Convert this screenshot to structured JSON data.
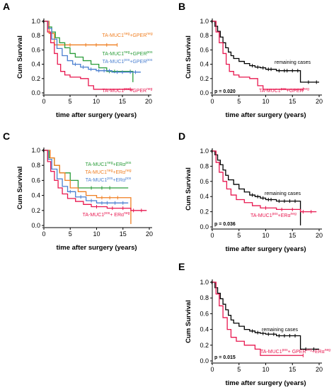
{
  "chart_data": [
    {
      "panel": "A",
      "type": "line",
      "subtype": "kaplan-meier",
      "xlabel": "time after surgery (years)",
      "ylabel": "Cum Survival",
      "xlim": [
        0,
        20
      ],
      "ylim": [
        0,
        1.0
      ],
      "xticks": [
        "0",
        "5",
        "10",
        "15",
        "20"
      ],
      "yticks": [
        "0.0",
        "0.2",
        "0.4",
        "0.6",
        "0.8",
        "1.0"
      ],
      "series": [
        {
          "name": "TA-MUC1neg+GPERneg",
          "label_main": "TA-MUC1",
          "label_sup1": "neg",
          "label_mid": "+GPER",
          "label_sup2": "neg",
          "color": "#f07f22",
          "x": [
            0,
            1.0,
            2.0,
            3.5,
            14.0
          ],
          "y": [
            1.0,
            0.83,
            0.67,
            0.67,
            0.67
          ],
          "censor_x": [
            5,
            8,
            10,
            12,
            14
          ]
        },
        {
          "name": "TA-MUC1neg+GPERpos",
          "label_main": "TA-MUC1",
          "label_sup1": "neg",
          "label_mid": "+GPER",
          "label_sup2": "pos",
          "color": "#2a9d3a",
          "x": [
            0,
            0.8,
            1.5,
            2.2,
            3.0,
            4.0,
            5.0,
            6.0,
            7.5,
            9.0,
            10.5,
            12.0,
            14.5,
            17.0
          ],
          "y": [
            1.0,
            0.92,
            0.85,
            0.77,
            0.7,
            0.63,
            0.55,
            0.5,
            0.45,
            0.4,
            0.35,
            0.3,
            0.3,
            0.15
          ],
          "censor_x": [
            12.5,
            13.5,
            16.5
          ]
        },
        {
          "name": "TA-MUC1pos+GPERpos",
          "label_main": "TA-MUC1",
          "label_sup1": "pos",
          "label_mid": "+GPER",
          "label_sup2": "pos",
          "color": "#4a7fd0",
          "x": [
            0,
            0.8,
            1.5,
            2.5,
            3.5,
            4.5,
            5.5,
            7.0,
            8.5,
            10.0,
            13.0,
            18.5
          ],
          "y": [
            1.0,
            0.9,
            0.75,
            0.62,
            0.52,
            0.45,
            0.4,
            0.36,
            0.33,
            0.31,
            0.29,
            0.29
          ],
          "censor_x": [
            6,
            7.5,
            9,
            10.5,
            11.5,
            12.5,
            14,
            15,
            16.5,
            17.5
          ]
        },
        {
          "name": "TA-MUC1pos+GPERneg",
          "label_main": "TA-MUC1",
          "label_sup1": "pos",
          "label_mid": "+GPER",
          "label_sup2": "neg",
          "color": "#e8174f",
          "x": [
            0,
            0.7,
            1.3,
            2.0,
            2.6,
            3.2,
            4.0,
            5.0,
            7.0,
            8.5,
            9.5,
            17.0
          ],
          "y": [
            1.0,
            0.85,
            0.7,
            0.55,
            0.4,
            0.3,
            0.25,
            0.22,
            0.2,
            0.1,
            0.05,
            0.05
          ],
          "censor_x": [
            16.5
          ]
        }
      ]
    },
    {
      "panel": "B",
      "type": "line",
      "subtype": "kaplan-meier",
      "xlabel": "time after surgery (years)",
      "ylabel": "Cum Survival",
      "xlim": [
        0,
        20
      ],
      "ylim": [
        0,
        1.0
      ],
      "xticks": [
        "0",
        "5",
        "10",
        "15",
        "20"
      ],
      "yticks": [
        "0.0",
        "0.2",
        "0.4",
        "0.6",
        "0.8",
        "1.0"
      ],
      "pvalue": "p = 0.020",
      "series": [
        {
          "name": "remaining cases",
          "label_main": "remaining cases",
          "label_sup1": "",
          "label_mid": "",
          "label_sup2": "",
          "color": "#000000",
          "x": [
            0,
            0.5,
            1.0,
            1.5,
            2.0,
            2.5,
            3.0,
            3.5,
            4.0,
            5.0,
            6.0,
            7.0,
            8.0,
            9.0,
            10.0,
            12.0,
            16.5,
            20.0
          ],
          "y": [
            1.0,
            0.93,
            0.86,
            0.78,
            0.7,
            0.63,
            0.57,
            0.52,
            0.48,
            0.44,
            0.41,
            0.38,
            0.36,
            0.35,
            0.33,
            0.31,
            0.15,
            0.15
          ],
          "censor_x": [
            7.5,
            8.5,
            9.5,
            10.5,
            11,
            12.5,
            13.5,
            14,
            15,
            16,
            18,
            19.5
          ]
        },
        {
          "name": "TA-MUC1pos+GPERneg",
          "label_main": "TA-MUC1",
          "label_sup1": "pos",
          "label_mid": "+GPER",
          "label_sup2": "neg",
          "color": "#e8174f",
          "x": [
            0,
            0.7,
            1.3,
            2.0,
            2.6,
            3.2,
            4.0,
            5.0,
            7.0,
            8.5,
            9.5,
            17.0
          ],
          "y": [
            1.0,
            0.85,
            0.7,
            0.55,
            0.4,
            0.3,
            0.25,
            0.22,
            0.2,
            0.1,
            0.05,
            0.05
          ],
          "censor_x": [
            17.0
          ]
        }
      ]
    },
    {
      "panel": "C",
      "type": "line",
      "subtype": "kaplan-meier",
      "xlabel": "time after surgery (years)",
      "ylabel": "Cum Survival",
      "xlim": [
        0,
        20
      ],
      "ylim": [
        0,
        1.0
      ],
      "xticks": [
        "0",
        "5",
        "10",
        "15",
        "20"
      ],
      "yticks": [
        "0.0",
        "0.2",
        "0.4",
        "0.6",
        "0.8",
        "1.0"
      ],
      "series": [
        {
          "name": "TA-MUC1neg+ERαpos",
          "label_main": "TA-MUC1",
          "label_sup1": "neg",
          "label_mid": "+ERα",
          "label_sup2": "pos",
          "color": "#2a9d3a",
          "x": [
            0,
            1.0,
            2.0,
            3.0,
            5.0,
            6.5,
            9.0,
            16.0
          ],
          "y": [
            1.0,
            0.9,
            0.8,
            0.7,
            0.6,
            0.5,
            0.5,
            0.5
          ],
          "censor_x": [
            9,
            11,
            12.5
          ]
        },
        {
          "name": "TA-MUC1neg+ERαneg",
          "label_main": "TA-MUC1",
          "label_sup1": "neg",
          "label_mid": "+ERα",
          "label_sup2": "neg",
          "color": "#f07f22",
          "x": [
            0,
            1.2,
            2.0,
            3.0,
            4.0,
            5.0,
            6.5,
            8.0,
            10.0,
            16.0,
            16.5
          ],
          "y": [
            1.0,
            0.9,
            0.8,
            0.7,
            0.6,
            0.5,
            0.45,
            0.4,
            0.37,
            0.37,
            0.02
          ],
          "censor_x": [
            11,
            12.5,
            14
          ]
        },
        {
          "name": "TA-MUC1pos+ERαpos",
          "label_main": "TA-MUC1",
          "label_sup1": "pos",
          "label_mid": "+ERα",
          "label_sup2": "pos",
          "color": "#4a7fd0",
          "x": [
            0,
            0.8,
            1.5,
            2.5,
            3.5,
            4.5,
            6.0,
            8.0,
            10.0,
            16.0
          ],
          "y": [
            1.0,
            0.88,
            0.75,
            0.62,
            0.52,
            0.45,
            0.38,
            0.33,
            0.3,
            0.3
          ],
          "censor_x": [
            5,
            7,
            9,
            11,
            12,
            13.5,
            15
          ]
        },
        {
          "name": "TA-MUC1pos+ ERαneg",
          "label_main": "TA-MUC1",
          "label_sup1": "pos",
          "label_mid": "+ ERα",
          "label_sup2": "neg",
          "color": "#e8174f",
          "x": [
            0,
            0.7,
            1.3,
            2.0,
            2.7,
            3.5,
            4.5,
            6.0,
            7.5,
            9.0,
            12.0,
            16.5,
            19.5
          ],
          "y": [
            1.0,
            0.85,
            0.72,
            0.6,
            0.5,
            0.42,
            0.36,
            0.32,
            0.28,
            0.25,
            0.23,
            0.2,
            0.2
          ],
          "censor_x": [
            10,
            13,
            15,
            17,
            18.5
          ]
        }
      ]
    },
    {
      "panel": "D",
      "type": "line",
      "subtype": "kaplan-meier",
      "xlabel": "time after surgery (years)",
      "ylabel": "Cum Survival",
      "xlim": [
        0,
        20
      ],
      "ylim": [
        0,
        1.0
      ],
      "xticks": [
        "0",
        "5",
        "10",
        "15",
        "20"
      ],
      "yticks": [
        "0.0",
        "0.2",
        "0.4",
        "0.6",
        "0.8",
        "1.0"
      ],
      "pvalue": "p = 0.036",
      "series": [
        {
          "name": "remaining cases",
          "label_main": "remaining cases",
          "label_sup1": "",
          "label_mid": "",
          "label_sup2": "",
          "color": "#000000",
          "x": [
            0,
            0.5,
            1.0,
            1.5,
            2.0,
            2.5,
            3.0,
            4.0,
            5.0,
            6.0,
            7.0,
            8.0,
            9.0,
            10.0,
            12.0,
            16.5
          ],
          "y": [
            1.0,
            0.95,
            0.88,
            0.82,
            0.75,
            0.68,
            0.62,
            0.56,
            0.5,
            0.46,
            0.42,
            0.4,
            0.38,
            0.36,
            0.34,
            0.02
          ],
          "censor_x": [
            7.5,
            8.5,
            9.5,
            10.5,
            11,
            12.5,
            13.5,
            14.5,
            15.5
          ]
        },
        {
          "name": "TA-MUC1pos+ERαneg",
          "label_main": "TA-MUC1",
          "label_sup1": "pos",
          "label_mid": "+ERα",
          "label_sup2": "neg",
          "color": "#e8174f",
          "x": [
            0,
            0.7,
            1.3,
            2.0,
            2.7,
            3.5,
            4.5,
            6.0,
            7.5,
            9.0,
            12.0,
            16.5,
            19.5
          ],
          "y": [
            1.0,
            0.85,
            0.72,
            0.6,
            0.5,
            0.42,
            0.36,
            0.32,
            0.28,
            0.25,
            0.23,
            0.2,
            0.2
          ],
          "censor_x": [
            10,
            13,
            15,
            17,
            18.5
          ]
        }
      ]
    },
    {
      "panel": "E",
      "type": "line",
      "subtype": "kaplan-meier",
      "xlabel": "time after surgery (years)",
      "ylabel": "Cum Survival",
      "xlim": [
        0,
        20
      ],
      "ylim": [
        0,
        1.0
      ],
      "xticks": [
        "0",
        "5",
        "10",
        "15",
        "20"
      ],
      "yticks": [
        "0.0",
        "0.2",
        "0.4",
        "0.6",
        "0.8",
        "1.0"
      ],
      "pvalue": "p = 0.015",
      "series": [
        {
          "name": "remaining cases",
          "label_main": "remaining cases",
          "label_sup1": "",
          "label_mid": "",
          "label_sup2": "",
          "color": "#000000",
          "x": [
            0,
            0.5,
            1.0,
            1.5,
            2.0,
            2.5,
            3.0,
            3.5,
            4.0,
            5.0,
            6.0,
            7.0,
            8.0,
            9.0,
            10.0,
            12.0,
            16.5,
            20.0
          ],
          "y": [
            1.0,
            0.93,
            0.86,
            0.79,
            0.72,
            0.65,
            0.58,
            0.52,
            0.48,
            0.44,
            0.4,
            0.38,
            0.36,
            0.35,
            0.34,
            0.32,
            0.15,
            0.15
          ],
          "censor_x": [
            7.5,
            8.5,
            9.5,
            10.5,
            11.5,
            12.5,
            13.5,
            14.5,
            15.5,
            17.5,
            19
          ]
        },
        {
          "name": "TA-MUC1pos+ GPERneg+ERαneg",
          "label_main": "TA-MUC1",
          "label_sup1": "pos",
          "label_mid": "+ GPER",
          "label_sup2": "neg",
          "label_mid2": "+ERα",
          "label_sup3": "neg",
          "color": "#e8174f",
          "x": [
            0,
            0.7,
            1.3,
            2.0,
            2.8,
            3.5,
            4.5,
            6.0,
            8.0,
            9.0,
            16.5,
            17.0
          ],
          "y": [
            1.0,
            0.85,
            0.7,
            0.55,
            0.4,
            0.3,
            0.25,
            0.2,
            0.15,
            0.07,
            0.07,
            0.07
          ],
          "censor_x": [
            17.0
          ]
        }
      ]
    }
  ]
}
